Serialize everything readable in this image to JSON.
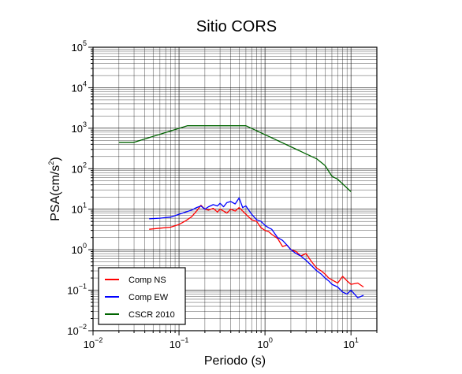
{
  "chart_data": {
    "type": "line",
    "title": "Sitio CORS",
    "xlabel": "Periodo (s)",
    "ylabel_base": "PSA(cm/s",
    "ylabel_exp": "2",
    "ylabel_close": ")",
    "x_scale": "log",
    "y_scale": "log",
    "xlim": [
      0.01,
      20
    ],
    "ylim": [
      0.01,
      100000
    ],
    "grid": true,
    "legend_position": "bottom-left",
    "x_ticks": [
      {
        "base": "10",
        "exp": "−2",
        "value": 0.01
      },
      {
        "base": "10",
        "exp": "−1",
        "value": 0.1
      },
      {
        "base": "10",
        "exp": "0",
        "value": 1
      },
      {
        "base": "10",
        "exp": "1",
        "value": 10
      }
    ],
    "y_ticks": [
      {
        "base": "10",
        "exp": "−2",
        "value": 0.01
      },
      {
        "base": "10",
        "exp": "−1",
        "value": 0.1
      },
      {
        "base": "10",
        "exp": "0",
        "value": 1
      },
      {
        "base": "10",
        "exp": "1",
        "value": 10
      },
      {
        "base": "10",
        "exp": "2",
        "value": 100
      },
      {
        "base": "10",
        "exp": "3",
        "value": 1000
      },
      {
        "base": "10",
        "exp": "4",
        "value": 10000
      },
      {
        "base": "10",
        "exp": "5",
        "value": 100000
      }
    ],
    "series": [
      {
        "name": "Comp NS",
        "color": "#ff0000",
        "x": [
          0.045,
          0.06,
          0.08,
          0.1,
          0.12,
          0.14,
          0.16,
          0.18,
          0.2,
          0.22,
          0.25,
          0.28,
          0.3,
          0.33,
          0.36,
          0.4,
          0.45,
          0.5,
          0.55,
          0.6,
          0.7,
          0.8,
          0.9,
          1.0,
          1.1,
          1.2,
          1.4,
          1.6,
          1.8,
          2.0,
          2.3,
          2.6,
          3.0,
          3.5,
          4.0,
          4.5,
          5.0,
          5.5,
          6.0,
          7.0,
          8.0,
          9.0,
          10.0,
          12.0,
          14.0
        ],
        "y": [
          3.2,
          3.4,
          3.6,
          4.2,
          5.2,
          6.5,
          9.0,
          12.5,
          10.0,
          9.5,
          10.5,
          8.5,
          10.0,
          9.0,
          8.0,
          10.0,
          9.0,
          11.0,
          9.0,
          7.5,
          5.5,
          5.0,
          3.5,
          3.0,
          2.8,
          2.4,
          1.9,
          1.2,
          1.3,
          1.0,
          0.9,
          0.7,
          0.8,
          0.5,
          0.35,
          0.3,
          0.25,
          0.2,
          0.18,
          0.15,
          0.22,
          0.17,
          0.14,
          0.15,
          0.12
        ]
      },
      {
        "name": "Comp EW",
        "color": "#0000ff",
        "x": [
          0.045,
          0.06,
          0.08,
          0.1,
          0.12,
          0.14,
          0.16,
          0.18,
          0.2,
          0.22,
          0.25,
          0.28,
          0.3,
          0.33,
          0.36,
          0.4,
          0.45,
          0.5,
          0.55,
          0.6,
          0.7,
          0.8,
          0.9,
          1.0,
          1.1,
          1.2,
          1.4,
          1.6,
          1.8,
          2.0,
          2.3,
          2.6,
          3.0,
          3.5,
          4.0,
          4.5,
          5.0,
          5.5,
          6.0,
          7.0,
          8.0,
          9.0,
          10.0,
          12.0,
          14.0
        ],
        "y": [
          5.8,
          6.0,
          6.4,
          7.5,
          8.5,
          9.5,
          11.0,
          12.0,
          10.0,
          11.5,
          13.0,
          12.0,
          14.0,
          11.5,
          14.5,
          15.5,
          13.5,
          19.0,
          11.0,
          12.0,
          7.5,
          5.5,
          5.0,
          4.0,
          3.5,
          3.2,
          2.0,
          1.7,
          1.3,
          1.0,
          0.8,
          0.7,
          0.55,
          0.4,
          0.3,
          0.25,
          0.2,
          0.17,
          0.14,
          0.12,
          0.09,
          0.08,
          0.1,
          0.065,
          0.075
        ]
      },
      {
        "name": "CSCR 2010",
        "color": "#006400",
        "x": [
          0.02,
          0.03,
          0.125,
          0.6,
          4.0,
          5.0,
          6.0,
          7.0,
          10.0
        ],
        "y": [
          450,
          450,
          1150,
          1150,
          175,
          120,
          65,
          55,
          27
        ]
      }
    ]
  }
}
